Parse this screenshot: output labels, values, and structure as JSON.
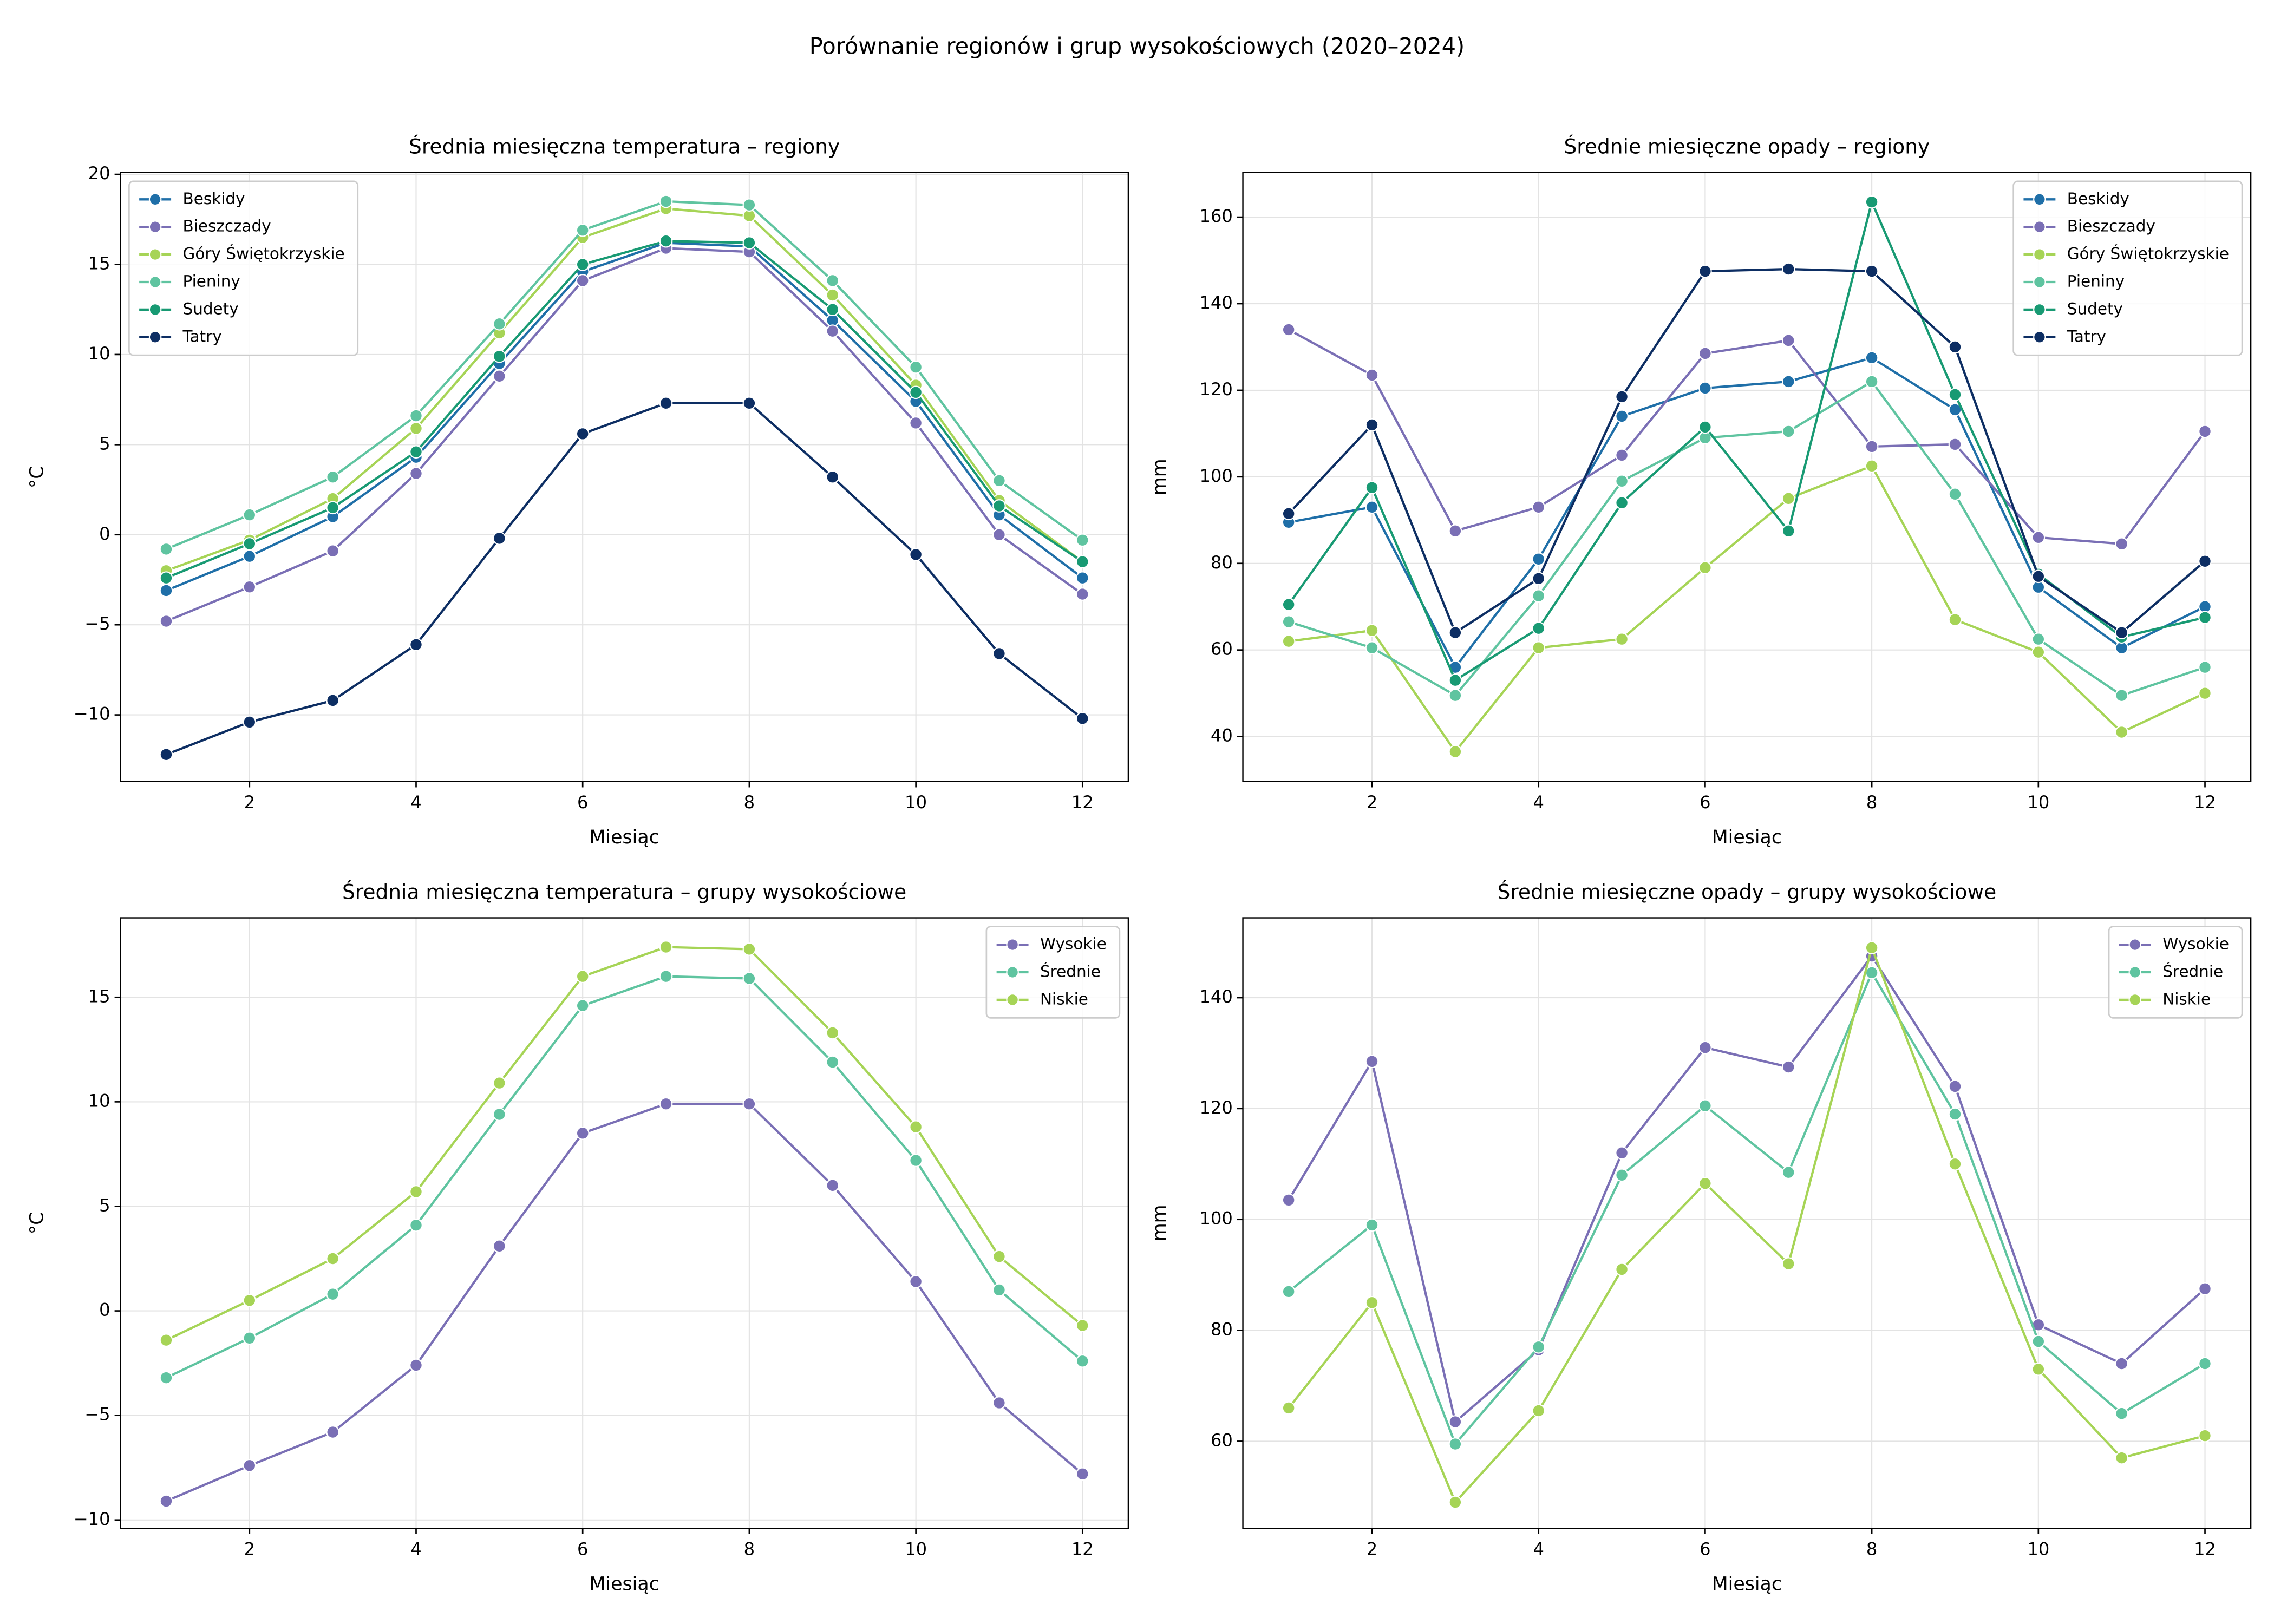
{
  "title": "Porównanie regionów i grup wysokościowych (2020–2024)",
  "chart_data": [
    {
      "type": "line",
      "title": "Średnia miesięczna temperatura – regiony",
      "x_label": "Miesiąc",
      "y_label": "°C",
      "x": [
        1,
        2,
        3,
        4,
        5,
        6,
        7,
        8,
        9,
        10,
        11,
        12
      ],
      "xlim": [
        0.45,
        12.55
      ],
      "xticks": [
        2,
        4,
        6,
        8,
        10,
        12
      ],
      "ylim": [
        -13.7,
        20.1
      ],
      "yticks": [
        {
          "value": -10,
          "label": "−10"
        },
        {
          "value": -5,
          "label": "−5"
        },
        0,
        5,
        10,
        15,
        20
      ],
      "grid": true,
      "legend": "upper left",
      "series": [
        {
          "name": "Beskidy",
          "color": "#1f6fa8",
          "values": [
            -3.1,
            -1.2,
            1.0,
            4.3,
            9.5,
            14.6,
            16.2,
            16.0,
            11.9,
            7.4,
            1.1,
            -2.4
          ]
        },
        {
          "name": "Bieszczady",
          "color": "#7a6fb5",
          "values": [
            -4.8,
            -2.9,
            -0.9,
            3.4,
            8.8,
            14.1,
            15.9,
            15.7,
            11.3,
            6.2,
            0.0,
            -3.3
          ]
        },
        {
          "name": "Góry Świętokrzyskie",
          "color": "#a6d456",
          "values": [
            -2.0,
            -0.3,
            2.0,
            5.9,
            11.2,
            16.5,
            18.1,
            17.7,
            13.3,
            8.3,
            1.9,
            -1.5
          ]
        },
        {
          "name": "Pieniny",
          "color": "#5fc4a0",
          "values": [
            -0.8,
            1.1,
            3.2,
            6.6,
            11.7,
            16.9,
            18.5,
            18.3,
            14.1,
            9.3,
            3.0,
            -0.3
          ]
        },
        {
          "name": "Sudety",
          "color": "#189a73",
          "values": [
            -2.4,
            -0.5,
            1.5,
            4.6,
            9.9,
            15.0,
            16.3,
            16.2,
            12.5,
            7.9,
            1.6,
            -1.5
          ]
        },
        {
          "name": "Tatry",
          "color": "#0d2e63",
          "values": [
            -12.2,
            -10.4,
            -9.2,
            -6.1,
            -0.2,
            5.6,
            7.3,
            7.3,
            3.2,
            -1.1,
            -6.6,
            -10.2
          ]
        }
      ]
    },
    {
      "type": "line",
      "title": "Średnie miesięczne opady – regiony",
      "x_label": "Miesiąc",
      "y_label": "mm",
      "x": [
        1,
        2,
        3,
        4,
        5,
        6,
        7,
        8,
        9,
        10,
        11,
        12
      ],
      "xlim": [
        0.45,
        12.55
      ],
      "xticks": [
        2,
        4,
        6,
        8,
        10,
        12
      ],
      "ylim": [
        29.6,
        170.3
      ],
      "yticks": [
        40,
        60,
        80,
        100,
        120,
        140,
        160
      ],
      "grid": true,
      "legend": "upper right",
      "series": [
        {
          "name": "Beskidy",
          "color": "#1f6fa8",
          "values": [
            89.5,
            93,
            56,
            81,
            114,
            120.5,
            122,
            127.5,
            115.5,
            74.5,
            60.5,
            70
          ]
        },
        {
          "name": "Bieszczady",
          "color": "#7a6fb5",
          "values": [
            134,
            123.5,
            87.5,
            93,
            105,
            128.5,
            131.5,
            107,
            107.5,
            86,
            84.5,
            110.5
          ]
        },
        {
          "name": "Góry Świętokrzyskie",
          "color": "#a6d456",
          "values": [
            62,
            64.5,
            36.5,
            60.5,
            62.5,
            79,
            95,
            102.5,
            67,
            59.5,
            41,
            50
          ]
        },
        {
          "name": "Pieniny",
          "color": "#5fc4a0",
          "values": [
            66.5,
            60.5,
            49.5,
            72.5,
            99,
            109,
            110.5,
            122,
            96,
            62.5,
            49.5,
            56
          ]
        },
        {
          "name": "Sudety",
          "color": "#189a73",
          "values": [
            70.5,
            97.5,
            53,
            65,
            94,
            111.5,
            87.5,
            163.5,
            119,
            77.5,
            63,
            67.5
          ]
        },
        {
          "name": "Tatry",
          "color": "#0d2e63",
          "values": [
            91.5,
            112,
            64,
            76.5,
            118.5,
            147.5,
            148,
            147.5,
            130,
            77,
            64,
            80.5
          ]
        }
      ]
    },
    {
      "type": "line",
      "title": "Średnia miesięczna temperatura – grupy wysokościowe",
      "x_label": "Miesiąc",
      "y_label": "°C",
      "x": [
        1,
        2,
        3,
        4,
        5,
        6,
        7,
        8,
        9,
        10,
        11,
        12
      ],
      "xlim": [
        0.45,
        12.55
      ],
      "xticks": [
        2,
        4,
        6,
        8,
        10,
        12
      ],
      "ylim": [
        -10.4,
        18.8
      ],
      "yticks": [
        {
          "value": -10,
          "label": "−10"
        },
        {
          "value": -5,
          "label": "−5"
        },
        0,
        5,
        10,
        15
      ],
      "grid": true,
      "legend": "upper right",
      "series": [
        {
          "name": "Wysokie",
          "color": "#7a6fb5",
          "values": [
            -9.1,
            -7.4,
            -5.8,
            -2.6,
            3.1,
            8.5,
            9.9,
            9.9,
            6.0,
            1.4,
            -4.4,
            -7.8
          ]
        },
        {
          "name": "Średnie",
          "color": "#5fc4a0",
          "values": [
            -3.2,
            -1.3,
            0.8,
            4.1,
            9.4,
            14.6,
            16.0,
            15.9,
            11.9,
            7.2,
            1.0,
            -2.4
          ]
        },
        {
          "name": "Niskie",
          "color": "#a6d456",
          "values": [
            -1.4,
            0.5,
            2.5,
            5.7,
            10.9,
            16.0,
            17.4,
            17.3,
            13.3,
            8.8,
            2.6,
            -0.7
          ]
        }
      ]
    },
    {
      "type": "line",
      "title": "Średnie miesięczne opady – grupy wysokościowe",
      "x_label": "Miesiąc",
      "y_label": "mm",
      "x": [
        1,
        2,
        3,
        4,
        5,
        6,
        7,
        8,
        9,
        10,
        11,
        12
      ],
      "xlim": [
        0.45,
        12.55
      ],
      "xticks": [
        2,
        4,
        6,
        8,
        10,
        12
      ],
      "ylim": [
        44.3,
        154.4
      ],
      "yticks": [
        60,
        80,
        100,
        120,
        140
      ],
      "grid": true,
      "legend": "upper right",
      "series": [
        {
          "name": "Wysokie",
          "color": "#7a6fb5",
          "values": [
            103.5,
            128.5,
            63.5,
            76.5,
            112,
            131,
            127.5,
            147.5,
            124,
            81,
            74,
            87.5
          ]
        },
        {
          "name": "Średnie",
          "color": "#5fc4a0",
          "values": [
            87,
            99,
            59.5,
            77,
            108,
            120.5,
            108.5,
            144.5,
            119,
            78,
            65,
            74
          ]
        },
        {
          "name": "Niskie",
          "color": "#a6d456",
          "values": [
            66,
            85,
            49,
            65.5,
            91,
            106.5,
            92,
            149,
            110,
            73,
            57,
            61
          ]
        }
      ]
    }
  ]
}
